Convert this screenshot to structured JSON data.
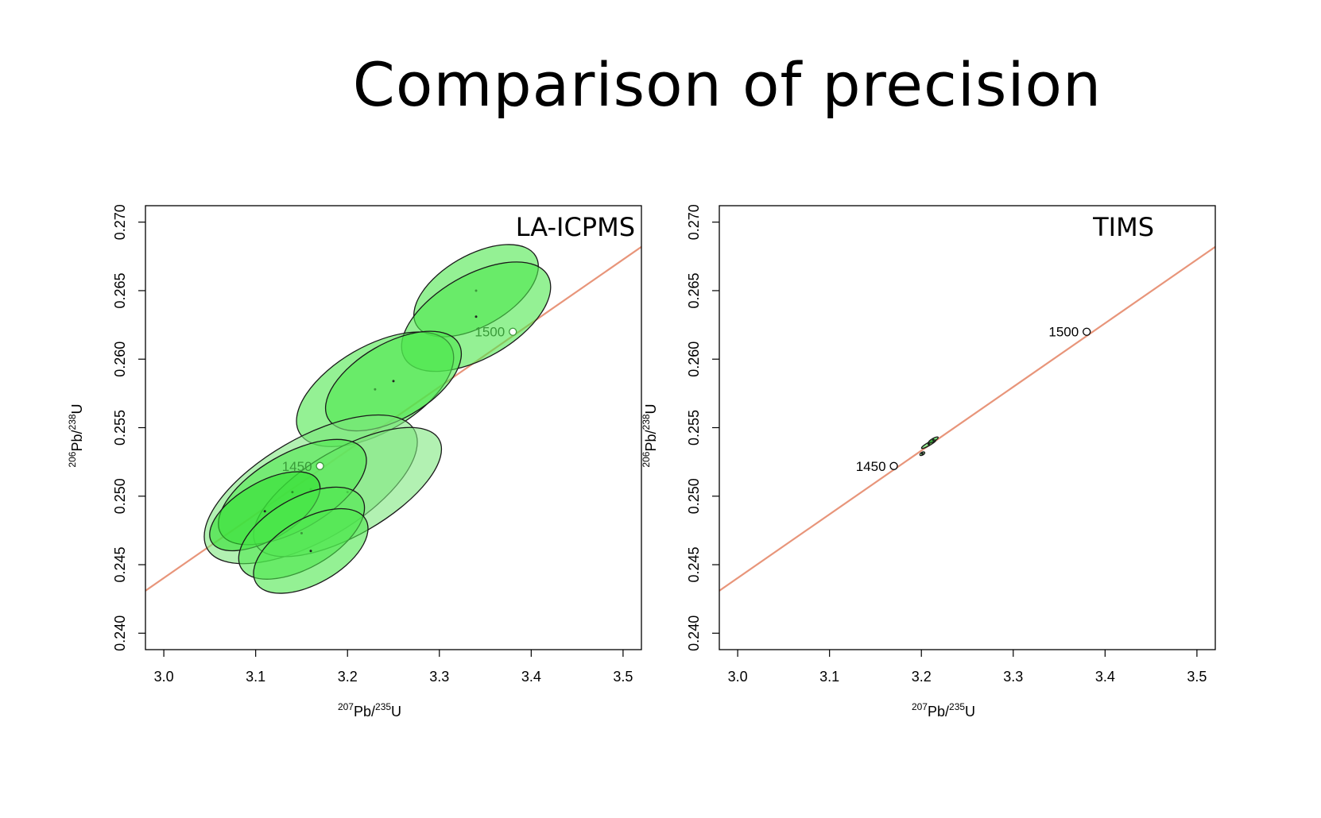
{
  "slide": {
    "title": "Comparison of precision"
  },
  "chart_data": [
    {
      "type": "scatter",
      "panel_label": "LA-ICPMS",
      "xlabel": "207Pb/235U",
      "ylabel": "206Pb/238U",
      "xlim": [
        2.98,
        3.52
      ],
      "ylim": [
        0.2388,
        0.2712
      ],
      "xticks": [
        "3.0",
        "3.1",
        "3.2",
        "3.3",
        "3.4",
        "3.5"
      ],
      "yticks": [
        "0.240",
        "0.245",
        "0.250",
        "0.255",
        "0.260",
        "0.265",
        "0.270"
      ],
      "concordia": {
        "color": "#e8957a",
        "points": [
          [
            2.98,
            0.2431
          ],
          [
            3.52,
            0.2682
          ]
        ]
      },
      "age_markers": [
        {
          "label": "1450",
          "x": 3.17,
          "y": 0.2522,
          "color": "#3a9a3a"
        },
        {
          "label": "1500",
          "x": 3.38,
          "y": 0.262,
          "color": "#3a9a3a"
        }
      ],
      "error_ellipses": [
        {
          "x": 3.34,
          "y": 0.265,
          "rx": 0.0075,
          "ry": 0.0047,
          "color": "#4ce84c"
        },
        {
          "x": 3.34,
          "y": 0.2631,
          "rx": 0.009,
          "ry": 0.0055,
          "color": "#4ce84c"
        },
        {
          "x": 3.23,
          "y": 0.2578,
          "rx": 0.0095,
          "ry": 0.0057,
          "color": "#4ce84c"
        },
        {
          "x": 3.25,
          "y": 0.2584,
          "rx": 0.0082,
          "ry": 0.005,
          "color": "#4ce84c"
        },
        {
          "x": 3.16,
          "y": 0.2505,
          "rx": 0.013,
          "ry": 0.0068,
          "color": "#7ee87e"
        },
        {
          "x": 3.2,
          "y": 0.2503,
          "rx": 0.0115,
          "ry": 0.0057,
          "color": "#7ee87e"
        },
        {
          "x": 3.14,
          "y": 0.2503,
          "rx": 0.009,
          "ry": 0.005,
          "color": "#4ce84c"
        },
        {
          "x": 3.11,
          "y": 0.2489,
          "rx": 0.0067,
          "ry": 0.0038,
          "color": "#2fe02f"
        },
        {
          "x": 3.15,
          "y": 0.2473,
          "rx": 0.0076,
          "ry": 0.0046,
          "color": "#4ce84c"
        },
        {
          "x": 3.16,
          "y": 0.246,
          "rx": 0.0069,
          "ry": 0.0043,
          "color": "#4ce84c"
        }
      ]
    },
    {
      "type": "scatter",
      "panel_label": "TIMS",
      "xlabel": "207Pb/235U",
      "ylabel": "206Pb/238U",
      "xlim": [
        2.98,
        3.52
      ],
      "ylim": [
        0.2388,
        0.2712
      ],
      "xticks": [
        "3.0",
        "3.1",
        "3.2",
        "3.3",
        "3.4",
        "3.5"
      ],
      "yticks": [
        "0.240",
        "0.245",
        "0.250",
        "0.255",
        "0.260",
        "0.265",
        "0.270"
      ],
      "concordia": {
        "color": "#e8957a",
        "points": [
          [
            2.98,
            0.2431
          ],
          [
            3.52,
            0.2682
          ]
        ]
      },
      "age_markers": [
        {
          "label": "1450",
          "x": 3.17,
          "y": 0.2522,
          "color": "#000000"
        },
        {
          "label": "1500",
          "x": 3.38,
          "y": 0.262,
          "color": "#000000"
        }
      ],
      "error_ellipses": [
        {
          "x": 3.208,
          "y": 0.2538,
          "rx": 0.0009,
          "ry": 0.0002,
          "color": "#4ce84c"
        },
        {
          "x": 3.213,
          "y": 0.2541,
          "rx": 0.0006,
          "ry": 0.0002,
          "color": "#2fe02f"
        },
        {
          "x": 3.201,
          "y": 0.2531,
          "rx": 0.0003,
          "ry": 0.0001,
          "color": "#4ce84c"
        }
      ]
    }
  ]
}
